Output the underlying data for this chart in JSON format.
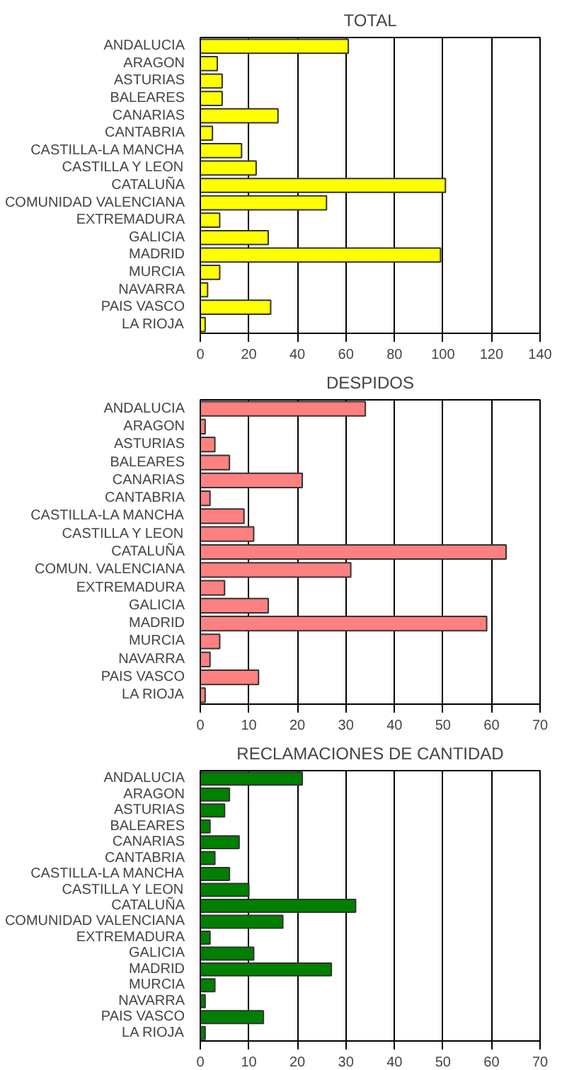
{
  "chart_data": [
    {
      "type": "bar",
      "orientation": "horizontal",
      "title": "TOTAL",
      "categories": [
        "ANDALUCIA",
        "ARAGON",
        "ASTURIAS",
        "BALEARES",
        "CANARIAS",
        "CANTABRIA",
        "CASTILLA-LA MANCHA",
        "CASTILLA Y LEON",
        "CATALUÑA",
        "COMUNIDAD VALENCIANA",
        "EXTREMADURA",
        "GALICIA",
        "MADRID",
        "MURCIA",
        "NAVARRA",
        "PAIS VASCO",
        "LA RIOJA"
      ],
      "values": [
        61,
        7,
        9,
        9,
        32,
        5,
        17,
        23,
        101,
        52,
        8,
        28,
        99,
        8,
        3,
        29,
        2
      ],
      "color": "#ffff00",
      "xlim": [
        0,
        140
      ],
      "xticks": [
        0,
        20,
        40,
        60,
        80,
        100,
        120,
        140
      ],
      "grid": "x"
    },
    {
      "type": "bar",
      "orientation": "horizontal",
      "title": "DESPIDOS",
      "categories": [
        "ANDALUCIA",
        "ARAGON",
        "ASTURIAS",
        "BALEARES",
        "CANARIAS",
        "CANTABRIA",
        "CASTILLA-LA MANCHA",
        "CASTILLA Y LEON",
        "CATALUÑA",
        "COMUN. VALENCIANA",
        "EXTREMADURA",
        "GALICIA",
        "MADRID",
        "MURCIA",
        "NAVARRA",
        "PAIS VASCO",
        "LA RIOJA"
      ],
      "values": [
        34,
        1,
        3,
        6,
        21,
        2,
        9,
        11,
        63,
        31,
        5,
        14,
        59,
        4,
        2,
        12,
        1
      ],
      "color": "#ff8080",
      "xlim": [
        0,
        70
      ],
      "xticks": [
        0,
        10,
        20,
        30,
        40,
        50,
        60,
        70
      ],
      "grid": "x"
    },
    {
      "type": "bar",
      "orientation": "horizontal",
      "title": "RECLAMACIONES DE CANTIDAD",
      "categories": [
        "ANDALUCIA",
        "ARAGON",
        "ASTURIAS",
        "BALEARES",
        "CANARIAS",
        "CANTABRIA",
        "CASTILLA-LA MANCHA",
        "CASTILLA Y LEON",
        "CATALUÑA",
        "COMUNIDAD VALENCIANA",
        "EXTREMADURA",
        "GALICIA",
        "MADRID",
        "MURCIA",
        "NAVARRA",
        "PAIS VASCO",
        "LA RIOJA"
      ],
      "values": [
        21,
        6,
        5,
        2,
        8,
        3,
        6,
        10,
        32,
        17,
        2,
        11,
        27,
        3,
        1,
        13,
        1
      ],
      "color": "#008000",
      "xlim": [
        0,
        70
      ],
      "xticks": [
        0,
        10,
        20,
        30,
        40,
        50,
        60,
        70
      ],
      "grid": "x"
    }
  ]
}
